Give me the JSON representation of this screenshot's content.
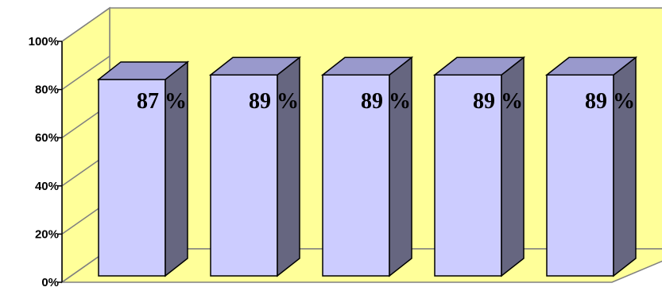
{
  "chart_data": {
    "type": "bar",
    "style": "3d-column",
    "categories": [
      "",
      "",
      "",
      "",
      ""
    ],
    "values": [
      87,
      89,
      89,
      89,
      89
    ],
    "data_labels": [
      "87 %",
      "89 %",
      "89 %",
      "89 %",
      "89 %"
    ],
    "y_ticks": [
      "0%",
      "20%",
      "40%",
      "60%",
      "80%",
      "100%"
    ],
    "ylim": [
      0,
      100
    ],
    "title": "",
    "xlabel": "",
    "ylabel": "",
    "grid": false,
    "legend": "none",
    "colors": {
      "bar_front": "#CCCCFF",
      "bar_side": "#666680",
      "bar_top": "#9999CC",
      "wall": "#FFFF99",
      "floor": "#FFFF99",
      "frame": "#808080"
    }
  }
}
